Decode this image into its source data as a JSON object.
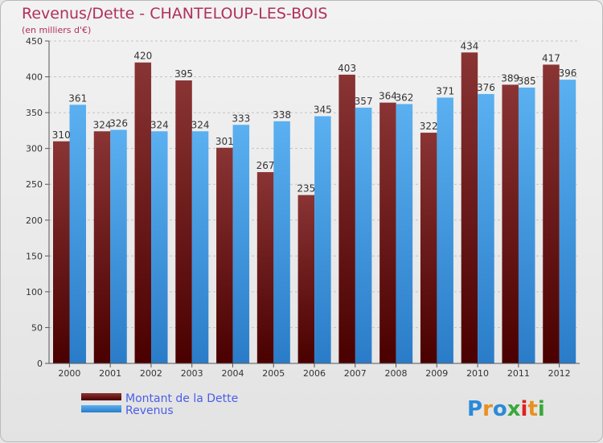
{
  "chart_data": {
    "type": "bar",
    "title": "Revenus/Dette - CHANTELOUP-LES-BOIS",
    "subtitle": "(en milliers d'€)",
    "categories": [
      "2000",
      "2001",
      "2002",
      "2003",
      "2004",
      "2005",
      "2006",
      "2007",
      "2008",
      "2009",
      "2010",
      "2011",
      "2012"
    ],
    "series": [
      {
        "name": "Montant de la Dette",
        "values": [
          310,
          324,
          420,
          395,
          301,
          267,
          235,
          403,
          364,
          322,
          434,
          389,
          417
        ],
        "color": "#7a1a1a"
      },
      {
        "name": "Revenus",
        "values": [
          361,
          326,
          324,
          324,
          333,
          338,
          345,
          357,
          362,
          371,
          376,
          385,
          396
        ],
        "color": "#3a9ae0"
      }
    ],
    "yticks": [
      0,
      50,
      100,
      150,
      200,
      250,
      300,
      350,
      400,
      450
    ],
    "ylim": [
      0,
      450
    ],
    "grid": true,
    "legend": "bottom-left"
  },
  "brand": {
    "logo_text": "Proxiti",
    "letters": [
      "P",
      "r",
      "o",
      "x",
      "i",
      "t",
      "i"
    ]
  }
}
